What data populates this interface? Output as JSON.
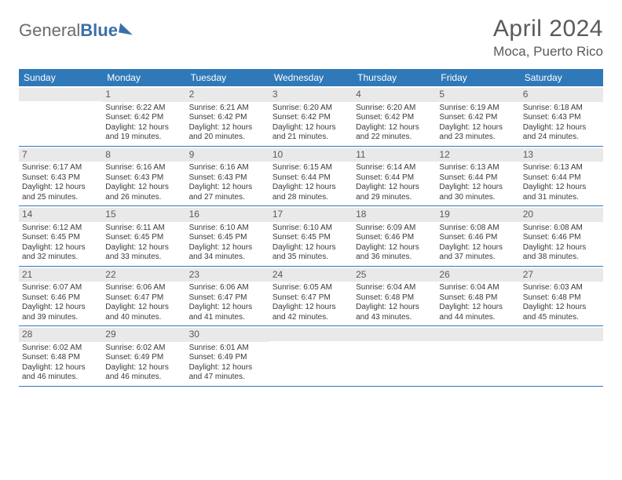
{
  "logo": {
    "text1": "General",
    "text2": "Blue"
  },
  "title": "April 2024",
  "location": "Moca, Puerto Rico",
  "colors": {
    "header_bg": "#2f79b9",
    "header_fg": "#ffffff",
    "daynum_bg": "#e9e9e9",
    "week_border": "#2f79b9",
    "text": "#3a3a3a",
    "title_color": "#5a5a5a"
  },
  "day_names": [
    "Sunday",
    "Monday",
    "Tuesday",
    "Wednesday",
    "Thursday",
    "Friday",
    "Saturday"
  ],
  "weeks": [
    [
      {
        "blank": true
      },
      {
        "n": "1",
        "sr": "Sunrise: 6:22 AM",
        "ss": "Sunset: 6:42 PM",
        "d1": "Daylight: 12 hours",
        "d2": "and 19 minutes."
      },
      {
        "n": "2",
        "sr": "Sunrise: 6:21 AM",
        "ss": "Sunset: 6:42 PM",
        "d1": "Daylight: 12 hours",
        "d2": "and 20 minutes."
      },
      {
        "n": "3",
        "sr": "Sunrise: 6:20 AM",
        "ss": "Sunset: 6:42 PM",
        "d1": "Daylight: 12 hours",
        "d2": "and 21 minutes."
      },
      {
        "n": "4",
        "sr": "Sunrise: 6:20 AM",
        "ss": "Sunset: 6:42 PM",
        "d1": "Daylight: 12 hours",
        "d2": "and 22 minutes."
      },
      {
        "n": "5",
        "sr": "Sunrise: 6:19 AM",
        "ss": "Sunset: 6:42 PM",
        "d1": "Daylight: 12 hours",
        "d2": "and 23 minutes."
      },
      {
        "n": "6",
        "sr": "Sunrise: 6:18 AM",
        "ss": "Sunset: 6:43 PM",
        "d1": "Daylight: 12 hours",
        "d2": "and 24 minutes."
      }
    ],
    [
      {
        "n": "7",
        "sr": "Sunrise: 6:17 AM",
        "ss": "Sunset: 6:43 PM",
        "d1": "Daylight: 12 hours",
        "d2": "and 25 minutes."
      },
      {
        "n": "8",
        "sr": "Sunrise: 6:16 AM",
        "ss": "Sunset: 6:43 PM",
        "d1": "Daylight: 12 hours",
        "d2": "and 26 minutes."
      },
      {
        "n": "9",
        "sr": "Sunrise: 6:16 AM",
        "ss": "Sunset: 6:43 PM",
        "d1": "Daylight: 12 hours",
        "d2": "and 27 minutes."
      },
      {
        "n": "10",
        "sr": "Sunrise: 6:15 AM",
        "ss": "Sunset: 6:44 PM",
        "d1": "Daylight: 12 hours",
        "d2": "and 28 minutes."
      },
      {
        "n": "11",
        "sr": "Sunrise: 6:14 AM",
        "ss": "Sunset: 6:44 PM",
        "d1": "Daylight: 12 hours",
        "d2": "and 29 minutes."
      },
      {
        "n": "12",
        "sr": "Sunrise: 6:13 AM",
        "ss": "Sunset: 6:44 PM",
        "d1": "Daylight: 12 hours",
        "d2": "and 30 minutes."
      },
      {
        "n": "13",
        "sr": "Sunrise: 6:13 AM",
        "ss": "Sunset: 6:44 PM",
        "d1": "Daylight: 12 hours",
        "d2": "and 31 minutes."
      }
    ],
    [
      {
        "n": "14",
        "sr": "Sunrise: 6:12 AM",
        "ss": "Sunset: 6:45 PM",
        "d1": "Daylight: 12 hours",
        "d2": "and 32 minutes."
      },
      {
        "n": "15",
        "sr": "Sunrise: 6:11 AM",
        "ss": "Sunset: 6:45 PM",
        "d1": "Daylight: 12 hours",
        "d2": "and 33 minutes."
      },
      {
        "n": "16",
        "sr": "Sunrise: 6:10 AM",
        "ss": "Sunset: 6:45 PM",
        "d1": "Daylight: 12 hours",
        "d2": "and 34 minutes."
      },
      {
        "n": "17",
        "sr": "Sunrise: 6:10 AM",
        "ss": "Sunset: 6:45 PM",
        "d1": "Daylight: 12 hours",
        "d2": "and 35 minutes."
      },
      {
        "n": "18",
        "sr": "Sunrise: 6:09 AM",
        "ss": "Sunset: 6:46 PM",
        "d1": "Daylight: 12 hours",
        "d2": "and 36 minutes."
      },
      {
        "n": "19",
        "sr": "Sunrise: 6:08 AM",
        "ss": "Sunset: 6:46 PM",
        "d1": "Daylight: 12 hours",
        "d2": "and 37 minutes."
      },
      {
        "n": "20",
        "sr": "Sunrise: 6:08 AM",
        "ss": "Sunset: 6:46 PM",
        "d1": "Daylight: 12 hours",
        "d2": "and 38 minutes."
      }
    ],
    [
      {
        "n": "21",
        "sr": "Sunrise: 6:07 AM",
        "ss": "Sunset: 6:46 PM",
        "d1": "Daylight: 12 hours",
        "d2": "and 39 minutes."
      },
      {
        "n": "22",
        "sr": "Sunrise: 6:06 AM",
        "ss": "Sunset: 6:47 PM",
        "d1": "Daylight: 12 hours",
        "d2": "and 40 minutes."
      },
      {
        "n": "23",
        "sr": "Sunrise: 6:06 AM",
        "ss": "Sunset: 6:47 PM",
        "d1": "Daylight: 12 hours",
        "d2": "and 41 minutes."
      },
      {
        "n": "24",
        "sr": "Sunrise: 6:05 AM",
        "ss": "Sunset: 6:47 PM",
        "d1": "Daylight: 12 hours",
        "d2": "and 42 minutes."
      },
      {
        "n": "25",
        "sr": "Sunrise: 6:04 AM",
        "ss": "Sunset: 6:48 PM",
        "d1": "Daylight: 12 hours",
        "d2": "and 43 minutes."
      },
      {
        "n": "26",
        "sr": "Sunrise: 6:04 AM",
        "ss": "Sunset: 6:48 PM",
        "d1": "Daylight: 12 hours",
        "d2": "and 44 minutes."
      },
      {
        "n": "27",
        "sr": "Sunrise: 6:03 AM",
        "ss": "Sunset: 6:48 PM",
        "d1": "Daylight: 12 hours",
        "d2": "and 45 minutes."
      }
    ],
    [
      {
        "n": "28",
        "sr": "Sunrise: 6:02 AM",
        "ss": "Sunset: 6:48 PM",
        "d1": "Daylight: 12 hours",
        "d2": "and 46 minutes."
      },
      {
        "n": "29",
        "sr": "Sunrise: 6:02 AM",
        "ss": "Sunset: 6:49 PM",
        "d1": "Daylight: 12 hours",
        "d2": "and 46 minutes."
      },
      {
        "n": "30",
        "sr": "Sunrise: 6:01 AM",
        "ss": "Sunset: 6:49 PM",
        "d1": "Daylight: 12 hours",
        "d2": "and 47 minutes."
      },
      {
        "blank": true
      },
      {
        "blank": true
      },
      {
        "blank": true
      },
      {
        "blank": true
      }
    ]
  ]
}
